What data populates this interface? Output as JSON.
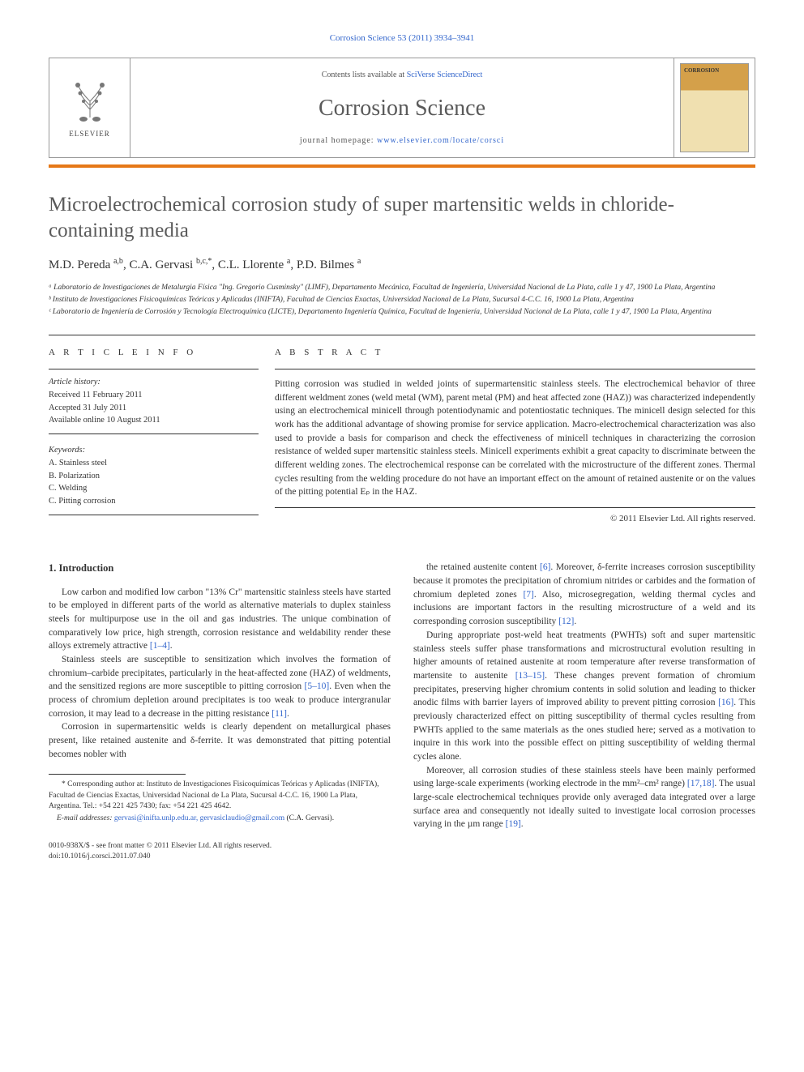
{
  "header": {
    "citation": "Corrosion Science 53 (2011) 3934–3941"
  },
  "masthead": {
    "publisher": "ELSEVIER",
    "contents_prefix": "Contents lists available at ",
    "contents_link": "SciVerse ScienceDirect",
    "journal": "Corrosion Science",
    "homepage_prefix": "journal homepage: ",
    "homepage_url": "www.elsevier.com/locate/corsci",
    "cover_label": "CORROSION"
  },
  "article": {
    "title": "Microelectrochemical corrosion study of super martensitic welds in chloride-containing media",
    "authors_html": "M.D. Pereda <sup>a,b</sup>, C.A. Gervasi <sup>b,c,*</sup>, C.L. Llorente <sup>a</sup>, P.D. Bilmes <sup>a</sup>",
    "affiliations": [
      "ᵃ Laboratorio de Investigaciones de Metalurgia Física \"Ing. Gregorio Cusminsky\" (LIMF), Departamento Mecánica, Facultad de Ingeniería, Universidad Nacional de La Plata, calle 1 y 47, 1900 La Plata, Argentina",
      "ᵇ Instituto de Investigaciones Fisicoquímicas Teóricas y Aplicadas (INIFTA), Facultad de Ciencias Exactas, Universidad Nacional de La Plata, Sucursal 4-C.C. 16, 1900 La Plata, Argentina",
      "ᶜ Laboratorio de Ingeniería de Corrosión y Tecnología Electroquímica (LICTE), Departamento Ingeniería Química, Facultad de Ingeniería, Universidad Nacional de La Plata, calle 1 y 47, 1900 La Plata, Argentina"
    ]
  },
  "info": {
    "heading": "A R T I C L E   I N F O",
    "history_label": "Article history:",
    "received": "Received 11 February 2011",
    "accepted": "Accepted 31 July 2011",
    "online": "Available online 10 August 2011",
    "keywords_label": "Keywords:",
    "keywords": [
      "A. Stainless steel",
      "B. Polarization",
      "C. Welding",
      "C. Pitting corrosion"
    ]
  },
  "abstract": {
    "heading": "A B S T R A C T",
    "text": "Pitting corrosion was studied in welded joints of supermartensitic stainless steels. The electrochemical behavior of three different weldment zones (weld metal (WM), parent metal (PM) and heat affected zone (HAZ)) was characterized independently using an electrochemical minicell through potentiodynamic and potentiostatic techniques. The minicell design selected for this work has the additional advantage of showing promise for service application. Macro-electrochemical characterization was also used to provide a basis for comparison and check the effectiveness of minicell techniques in characterizing the corrosion resistance of welded super martensitic stainless steels. Minicell experiments exhibit a great capacity to discriminate between the different welding zones. The electrochemical response can be correlated with the microstructure of the different zones. Thermal cycles resulting from the welding procedure do not have an important effect on the amount of retained austenite or on the values of the pitting potential Eₚ in the HAZ.",
    "copyright": "© 2011 Elsevier Ltd. All rights reserved."
  },
  "body": {
    "section_heading": "1. Introduction",
    "col1": [
      "Low carbon and modified low carbon \"13% Cr\" martensitic stainless steels have started to be employed in different parts of the world as alternative materials to duplex stainless steels for multipurpose use in the oil and gas industries. The unique combination of comparatively low price, high strength, corrosion resistance and weldability render these alloys extremely attractive [1–4].",
      "Stainless steels are susceptible to sensitization which involves the formation of chromium–carbide precipitates, particularly in the heat-affected zone (HAZ) of weldments, and the sensitized regions are more susceptible to pitting corrosion [5–10]. Even when the process of chromium depletion around precipitates is too weak to produce intergranular corrosion, it may lead to a decrease in the pitting resistance [11].",
      "Corrosion in supermartensitic welds is clearly dependent on metallurgical phases present, like retained austenite and δ-ferrite. It was demonstrated that pitting potential becomes nobler with"
    ],
    "col2": [
      "the retained austenite content [6]. Moreover, δ-ferrite increases corrosion susceptibility because it promotes the precipitation of chromium nitrides or carbides and the formation of chromium depleted zones [7]. Also, microsegregation, welding thermal cycles and inclusions are important factors in the resulting microstructure of a weld and its corresponding corrosion susceptibility [12].",
      "During appropriate post-weld heat treatments (PWHTs) soft and super martensitic stainless steels suffer phase transformations and microstructural evolution resulting in higher amounts of retained austenite at room temperature after reverse transformation of martensite to austenite [13–15]. These changes prevent formation of chromium precipitates, preserving higher chromium contents in solid solution and leading to thicker anodic films with barrier layers of improved ability to prevent pitting corrosion [16]. This previously characterized effect on pitting susceptibility of thermal cycles resulting from PWHTs applied to the same materials as the ones studied here; served as a motivation to inquire in this work into the possible effect on pitting susceptibility of welding thermal cycles alone.",
      "Moreover, all corrosion studies of these stainless steels have been mainly performed using large-scale experiments (working electrode in the mm²–cm² range) [17,18]. The usual large-scale electrochemical techniques provide only averaged data integrated over a large surface area and consequently not ideally suited to investigate local corrosion processes varying in the µm range [19]."
    ]
  },
  "footnotes": {
    "corresponding": "* Corresponding author at: Instituto de Investigaciones Fisicoquímicas Teóricas y Aplicadas (INIFTA), Facultad de Ciencias Exactas, Universidad Nacional de La Plata, Sucursal 4-C.C. 16, 1900 La Plata, Argentina. Tel.: +54 221 425 7430; fax: +54 221 425 4642.",
    "email_label": "E-mail addresses:",
    "emails": "gervasi@inifta.unlp.edu.ar, gervasiclaudio@gmail.com",
    "email_suffix": " (C.A. Gervasi)."
  },
  "footer": {
    "issn": "0010-938X/$ - see front matter © 2011 Elsevier Ltd. All rights reserved.",
    "doi": "doi:10.1016/j.corsci.2011.07.040"
  },
  "refs": {
    "r1_4": "[1–4]",
    "r5_10": "[5–10]",
    "r11": "[11]",
    "r6": "[6]",
    "r7": "[7]",
    "r12": "[12]",
    "r13_15": "[13–15]",
    "r16": "[16]",
    "r17_18": "[17,18]",
    "r19": "[19]"
  }
}
